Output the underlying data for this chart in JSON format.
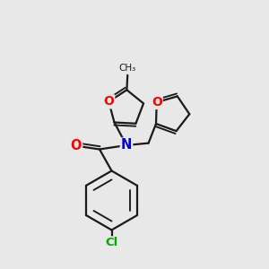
{
  "background_color": "#e8e8e8",
  "bond_color": "#1a1a1a",
  "bond_width": 1.6,
  "atom_colors": {
    "O": "#ff0000",
    "N": "#0000cc",
    "Cl": "#00aa00",
    "C": "#1a1a1a"
  }
}
